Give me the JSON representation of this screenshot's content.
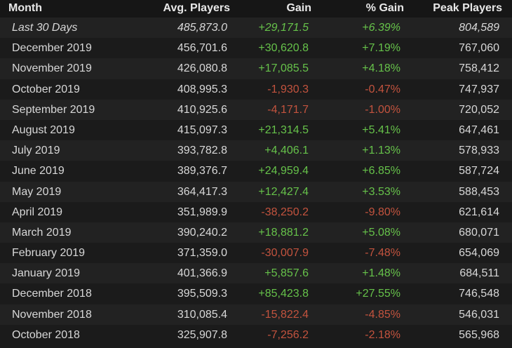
{
  "colors": {
    "positive": "#66c24a",
    "negative": "#c3533e",
    "background": "#1b1b1b",
    "row_alt": "#222222"
  },
  "headers": {
    "month": "Month",
    "avg": "Avg. Players",
    "gain": "Gain",
    "pct": "% Gain",
    "peak": "Peak Players"
  },
  "rows": [
    {
      "month": "Last 30 Days",
      "avg": "485,873.0",
      "gain": "+29,171.5",
      "pct": "+6.39%",
      "peak": "804,589",
      "trend": "pos",
      "italic": true
    },
    {
      "month": "December 2019",
      "avg": "456,701.6",
      "gain": "+30,620.8",
      "pct": "+7.19%",
      "peak": "767,060",
      "trend": "pos"
    },
    {
      "month": "November 2019",
      "avg": "426,080.8",
      "gain": "+17,085.5",
      "pct": "+4.18%",
      "peak": "758,412",
      "trend": "pos"
    },
    {
      "month": "October 2019",
      "avg": "408,995.3",
      "gain": "-1,930.3",
      "pct": "-0.47%",
      "peak": "747,937",
      "trend": "neg"
    },
    {
      "month": "September 2019",
      "avg": "410,925.6",
      "gain": "-4,171.7",
      "pct": "-1.00%",
      "peak": "720,052",
      "trend": "neg"
    },
    {
      "month": "August 2019",
      "avg": "415,097.3",
      "gain": "+21,314.5",
      "pct": "+5.41%",
      "peak": "647,461",
      "trend": "pos"
    },
    {
      "month": "July 2019",
      "avg": "393,782.8",
      "gain": "+4,406.1",
      "pct": "+1.13%",
      "peak": "578,933",
      "trend": "pos"
    },
    {
      "month": "June 2019",
      "avg": "389,376.7",
      "gain": "+24,959.4",
      "pct": "+6.85%",
      "peak": "587,724",
      "trend": "pos"
    },
    {
      "month": "May 2019",
      "avg": "364,417.3",
      "gain": "+12,427.4",
      "pct": "+3.53%",
      "peak": "588,453",
      "trend": "pos"
    },
    {
      "month": "April 2019",
      "avg": "351,989.9",
      "gain": "-38,250.2",
      "pct": "-9.80%",
      "peak": "621,614",
      "trend": "neg"
    },
    {
      "month": "March 2019",
      "avg": "390,240.2",
      "gain": "+18,881.2",
      "pct": "+5.08%",
      "peak": "680,071",
      "trend": "pos"
    },
    {
      "month": "February 2019",
      "avg": "371,359.0",
      "gain": "-30,007.9",
      "pct": "-7.48%",
      "peak": "654,069",
      "trend": "neg"
    },
    {
      "month": "January 2019",
      "avg": "401,366.9",
      "gain": "+5,857.6",
      "pct": "+1.48%",
      "peak": "684,511",
      "trend": "pos"
    },
    {
      "month": "December 2018",
      "avg": "395,509.3",
      "gain": "+85,423.8",
      "pct": "+27.55%",
      "peak": "746,548",
      "trend": "pos"
    },
    {
      "month": "November 2018",
      "avg": "310,085.4",
      "gain": "-15,822.4",
      "pct": "-4.85%",
      "peak": "546,031",
      "trend": "neg"
    },
    {
      "month": "October 2018",
      "avg": "325,907.8",
      "gain": "-7,256.2",
      "pct": "-2.18%",
      "peak": "565,968",
      "trend": "neg"
    }
  ]
}
